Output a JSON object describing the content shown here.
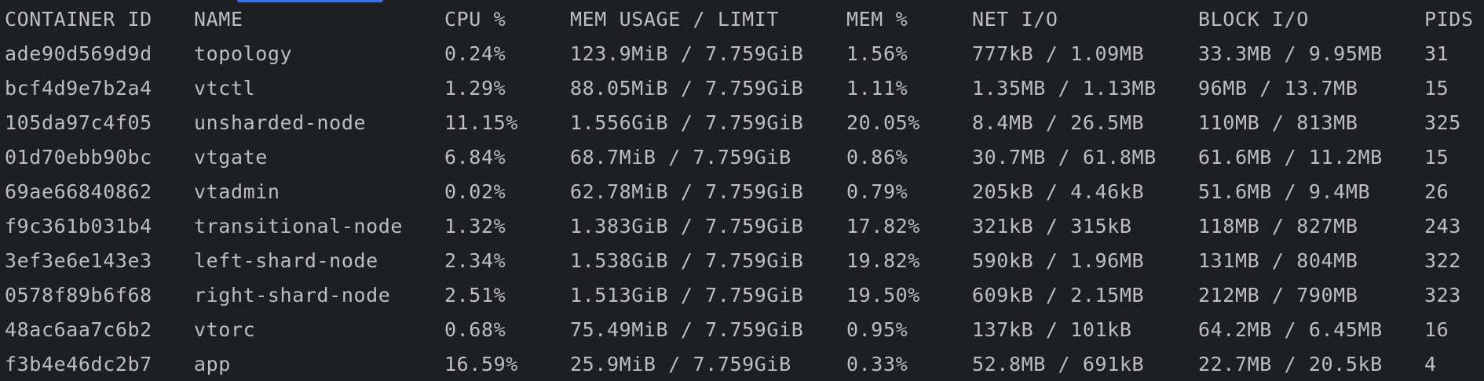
{
  "headers": [
    "CONTAINER ID",
    "NAME",
    "CPU %",
    "MEM USAGE / LIMIT",
    "MEM %",
    "NET I/O",
    "BLOCK I/O",
    "PIDS"
  ],
  "rows": [
    [
      "ade90d569d9d",
      "topology",
      "0.24%",
      "123.9MiB / 7.759GiB",
      "1.56%",
      "777kB / 1.09MB",
      "33.3MB / 9.95MB",
      "31"
    ],
    [
      "bcf4d9e7b2a4",
      "vtctl",
      "1.29%",
      "88.05MiB / 7.759GiB",
      "1.11%",
      "1.35MB / 1.13MB",
      "96MB / 13.7MB",
      "15"
    ],
    [
      "105da97c4f05",
      "unsharded-node",
      "11.15%",
      "1.556GiB / 7.759GiB",
      "20.05%",
      "8.4MB / 26.5MB",
      "110MB / 813MB",
      "325"
    ],
    [
      "01d70ebb90bc",
      "vtgate",
      "6.84%",
      "68.7MiB / 7.759GiB",
      "0.86%",
      "30.7MB / 61.8MB",
      "61.6MB / 11.2MB",
      "15"
    ],
    [
      "69ae66840862",
      "vtadmin",
      "0.02%",
      "62.78MiB / 7.759GiB",
      "0.79%",
      "205kB / 4.46kB",
      "51.6MB / 9.4MB",
      "26"
    ],
    [
      "f9c361b031b4",
      "transitional-node",
      "1.32%",
      "1.383GiB / 7.759GiB",
      "17.82%",
      "321kB / 315kB",
      "118MB / 827MB",
      "243"
    ],
    [
      "3ef3e6e143e3",
      "left-shard-node",
      "2.34%",
      "1.538GiB / 7.759GiB",
      "19.82%",
      "590kB / 1.96MB",
      "131MB / 804MB",
      "322"
    ],
    [
      "0578f89b6f68",
      "right-shard-node",
      "2.51%",
      "1.513GiB / 7.759GiB",
      "19.50%",
      "609kB / 2.15MB",
      "212MB / 790MB",
      "323"
    ],
    [
      "48ac6aa7c6b2",
      "vtorc",
      "0.68%",
      "75.49MiB / 7.759GiB",
      "0.95%",
      "137kB / 101kB",
      "64.2MB / 6.45MB",
      "16"
    ],
    [
      "f3b4e46dc2b7",
      "app",
      "16.59%",
      "25.9MiB / 7.759GiB",
      "0.33%",
      "52.8MB / 691kB",
      "22.7MB / 20.5kB",
      "4"
    ]
  ],
  "colors": {
    "background": "#1e1f22",
    "text": "#bcbec4",
    "selection_accent": "#3574f0"
  }
}
